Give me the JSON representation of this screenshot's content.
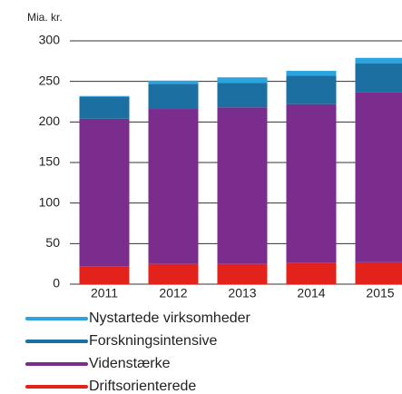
{
  "chart_data": {
    "type": "stacked_bar",
    "y_label": "Mia. kr.",
    "categories": [
      "2011",
      "2012",
      "2013",
      "2014",
      "2015"
    ],
    "series": [
      {
        "name": "Nystartede virksomheder",
        "color": "#2aa4de",
        "values": [
          1,
          4,
          7,
          6,
          7
        ]
      },
      {
        "name": "Forskningsintensive",
        "color": "#1b6fa1",
        "values": [
          27,
          31,
          30,
          35,
          35
        ]
      },
      {
        "name": "Videnstærke",
        "color": "#7b2d8e",
        "values": [
          182,
          191,
          193,
          196,
          210
        ]
      },
      {
        "name": "Driftsorienterede",
        "color": "#e3231b",
        "values": [
          22,
          25,
          25,
          26,
          27
        ]
      }
    ],
    "ylim": [
      0,
      300
    ],
    "yticks": [
      0,
      50,
      100,
      150,
      200,
      250,
      300
    ],
    "grid": true,
    "legend": "bottom"
  }
}
